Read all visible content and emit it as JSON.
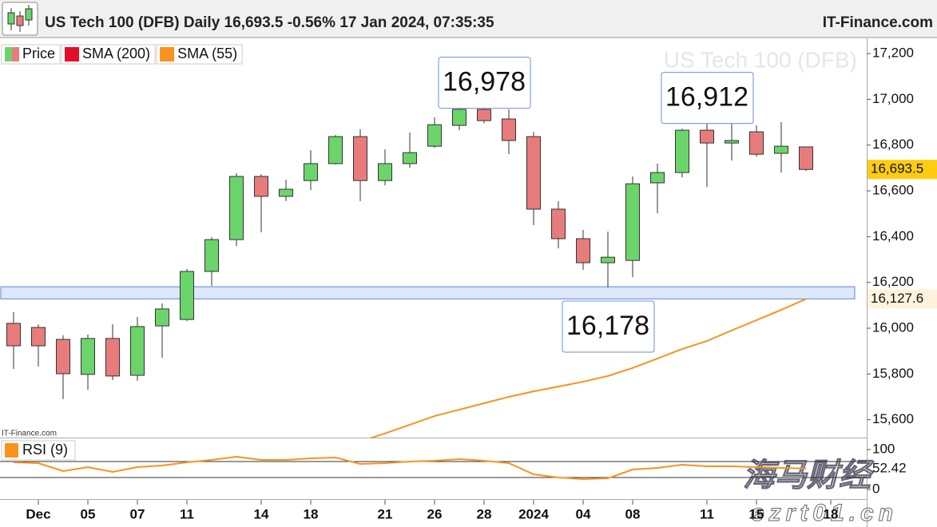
{
  "header": {
    "title": "US Tech 100 (DFB) Daily 16,693.5 -0.56% 17 Jan 2024, 07:35:35",
    "brand": "IT-Finance.com"
  },
  "watermark": {
    "text": "海马财经",
    "url": "ezrt01.cn"
  },
  "chart_data": [
    {
      "type": "candlestick",
      "watermark": "US Tech 100 (DFB)",
      "source": "IT-Finance.com",
      "categories": [
        null,
        "Dec",
        null,
        "05",
        null,
        "07",
        null,
        "11",
        null,
        null,
        "14",
        null,
        "18",
        null,
        null,
        "21",
        null,
        "26",
        null,
        "28",
        null,
        "2024",
        null,
        "04",
        null,
        "08",
        null,
        null,
        "11",
        null,
        "15",
        null,
        null,
        "18"
      ],
      "series": [
        {
          "name": "Price",
          "up_color": "#6bd46b",
          "down_color": "#e87c7c",
          "last_label": "16,693.5",
          "open": [
            16021,
            16003,
            15951,
            15798,
            15955,
            15794,
            16010,
            16038,
            16248,
            16387,
            16663,
            16576,
            16645,
            16719,
            16837,
            16645,
            16719,
            16795,
            16886,
            16956,
            16914,
            16837,
            16520,
            16391,
            16286,
            16296,
            16635,
            16680,
            16865,
            16809,
            16858,
            16764,
            16792,
            null
          ],
          "high": [
            16070,
            16017,
            15969,
            15972,
            16017,
            16049,
            16108,
            16258,
            16398,
            16677,
            16673,
            16649,
            16778,
            16844,
            16869,
            16781,
            16855,
            16921,
            16960,
            16978,
            16956,
            16858,
            16555,
            16429,
            16422,
            16663,
            16719,
            16872,
            16912,
            16907,
            16886,
            16900,
            16792,
            null
          ],
          "low": [
            15822,
            15833,
            15690,
            15731,
            15773,
            15770,
            15871,
            16031,
            16185,
            16359,
            16419,
            16555,
            16603,
            16715,
            16555,
            16624,
            16701,
            16788,
            16865,
            16895,
            16760,
            16450,
            16349,
            16255,
            16178,
            16223,
            16502,
            16659,
            16617,
            16732,
            16750,
            16680,
            16687,
            null
          ],
          "close": [
            15923,
            15923,
            15801,
            15955,
            15791,
            16007,
            16084,
            16248,
            16387,
            16663,
            16576,
            16607,
            16719,
            16837,
            16645,
            16719,
            16767,
            16889,
            16956,
            16907,
            16820,
            16520,
            16391,
            16286,
            16310,
            16631,
            16680,
            16865,
            16809,
            16820,
            16760,
            16795,
            16693.5,
            null
          ]
        },
        {
          "name": "SMA (200)",
          "color": "#e0102a",
          "values": [
            null,
            null,
            null,
            null,
            null,
            null,
            null,
            null,
            null,
            null,
            null,
            null,
            null,
            null,
            null,
            null,
            null,
            null,
            null,
            null,
            null,
            null,
            null,
            null,
            null,
            null,
            null,
            null,
            null,
            null,
            null,
            null,
            null,
            null
          ]
        },
        {
          "name": "SMA (55)",
          "color": "#f7931e",
          "last_label": "16,127.6",
          "values": [
            null,
            null,
            null,
            null,
            null,
            null,
            null,
            null,
            null,
            null,
            null,
            null,
            null,
            null,
            15505,
            15540,
            15578,
            15616,
            15644,
            15672,
            15700,
            15724,
            15745,
            15766,
            15791,
            15826,
            15867,
            15909,
            15944,
            15990,
            16035,
            16080,
            16127.6,
            null
          ]
        }
      ],
      "zone": {
        "low": 16128,
        "high": 16181,
        "color": "#dde8fb"
      },
      "annotations": [
        {
          "text": "16,978",
          "index": 19,
          "value": 16978,
          "position": "above"
        },
        {
          "text": "16,912",
          "index": 28,
          "value": 16912,
          "position": "above"
        },
        {
          "text": "16,178",
          "index": 24,
          "value": 16178,
          "position": "below"
        }
      ],
      "ylim": [
        15522,
        17249
      ],
      "yticks": [
        {
          "value": 15600,
          "label": "15,600"
        },
        {
          "value": 15800,
          "label": "15,800"
        },
        {
          "value": 16000,
          "label": "16,000"
        },
        {
          "value": 16200,
          "label": "16,200"
        },
        {
          "value": 16400,
          "label": "16,400"
        },
        {
          "value": 16600,
          "label": "16,600"
        },
        {
          "value": 16800,
          "label": "16,800"
        },
        {
          "value": 17000,
          "label": "17,000"
        },
        {
          "value": 17200,
          "label": "17,200"
        }
      ],
      "grid": false
    },
    {
      "type": "line",
      "name": "RSI (9)",
      "color": "#f7931e",
      "last_label": "52.42",
      "values": [
        68,
        66,
        46,
        56,
        44,
        56,
        60,
        68,
        74,
        82,
        74,
        74,
        78,
        80,
        64,
        66,
        70,
        72,
        76,
        72,
        66,
        38,
        30,
        26,
        28,
        50,
        54,
        62,
        58,
        58,
        56,
        54,
        52.42,
        null
      ],
      "levels": [
        70,
        30
      ],
      "ylim": [
        -24,
        128
      ],
      "yticks": [
        0,
        100
      ]
    }
  ]
}
